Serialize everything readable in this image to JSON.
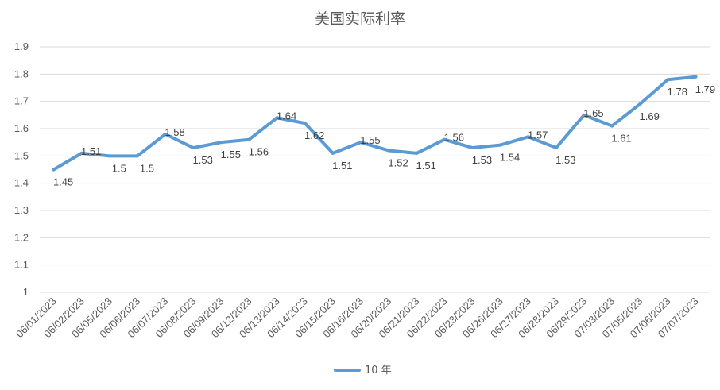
{
  "chart_data": {
    "type": "line",
    "title": "美国实际利率",
    "xlabel": "",
    "ylabel": "",
    "ylim": [
      1,
      1.9
    ],
    "ytick_labels": [
      "1",
      "1.1",
      "1.2",
      "1.3",
      "1.4",
      "1.5",
      "1.6",
      "1.7",
      "1.8",
      "1.9"
    ],
    "grid": true,
    "legend_position": "bottom",
    "categories": [
      "06/01/2023",
      "06/02/2023",
      "06/05/2023",
      "06/06/2023",
      "06/07/2023",
      "06/08/2023",
      "06/09/2023",
      "06/12/2023",
      "06/13/2023",
      "06/14/2023",
      "06/15/2023",
      "06/16/2023",
      "06/20/2023",
      "06/21/2023",
      "06/22/2023",
      "06/23/2023",
      "06/26/2023",
      "06/27/2023",
      "06/28/2023",
      "06/29/2023",
      "07/03/2023",
      "07/05/2023",
      "07/06/2023",
      "07/07/2023"
    ],
    "series": [
      {
        "name": "10 年",
        "color": "#5b9bd5",
        "values": [
          1.45,
          1.51,
          1.5,
          1.5,
          1.58,
          1.53,
          1.55,
          1.56,
          1.64,
          1.62,
          1.51,
          1.55,
          1.52,
          1.51,
          1.56,
          1.53,
          1.54,
          1.57,
          1.53,
          1.65,
          1.61,
          1.69,
          1.78,
          1.79
        ],
        "data_labels": [
          "1.45",
          "1.51",
          "1.5",
          "1.5",
          "1.58",
          "1.53",
          "1.55",
          "1.56",
          "1.64",
          "1.62",
          "1.51",
          "1.55",
          "1.52",
          "1.51",
          "1.56",
          "1.53",
          "1.54",
          "1.57",
          "1.53",
          "1.65",
          "1.61",
          "1.69",
          "1.78",
          "1.79"
        ]
      }
    ]
  }
}
